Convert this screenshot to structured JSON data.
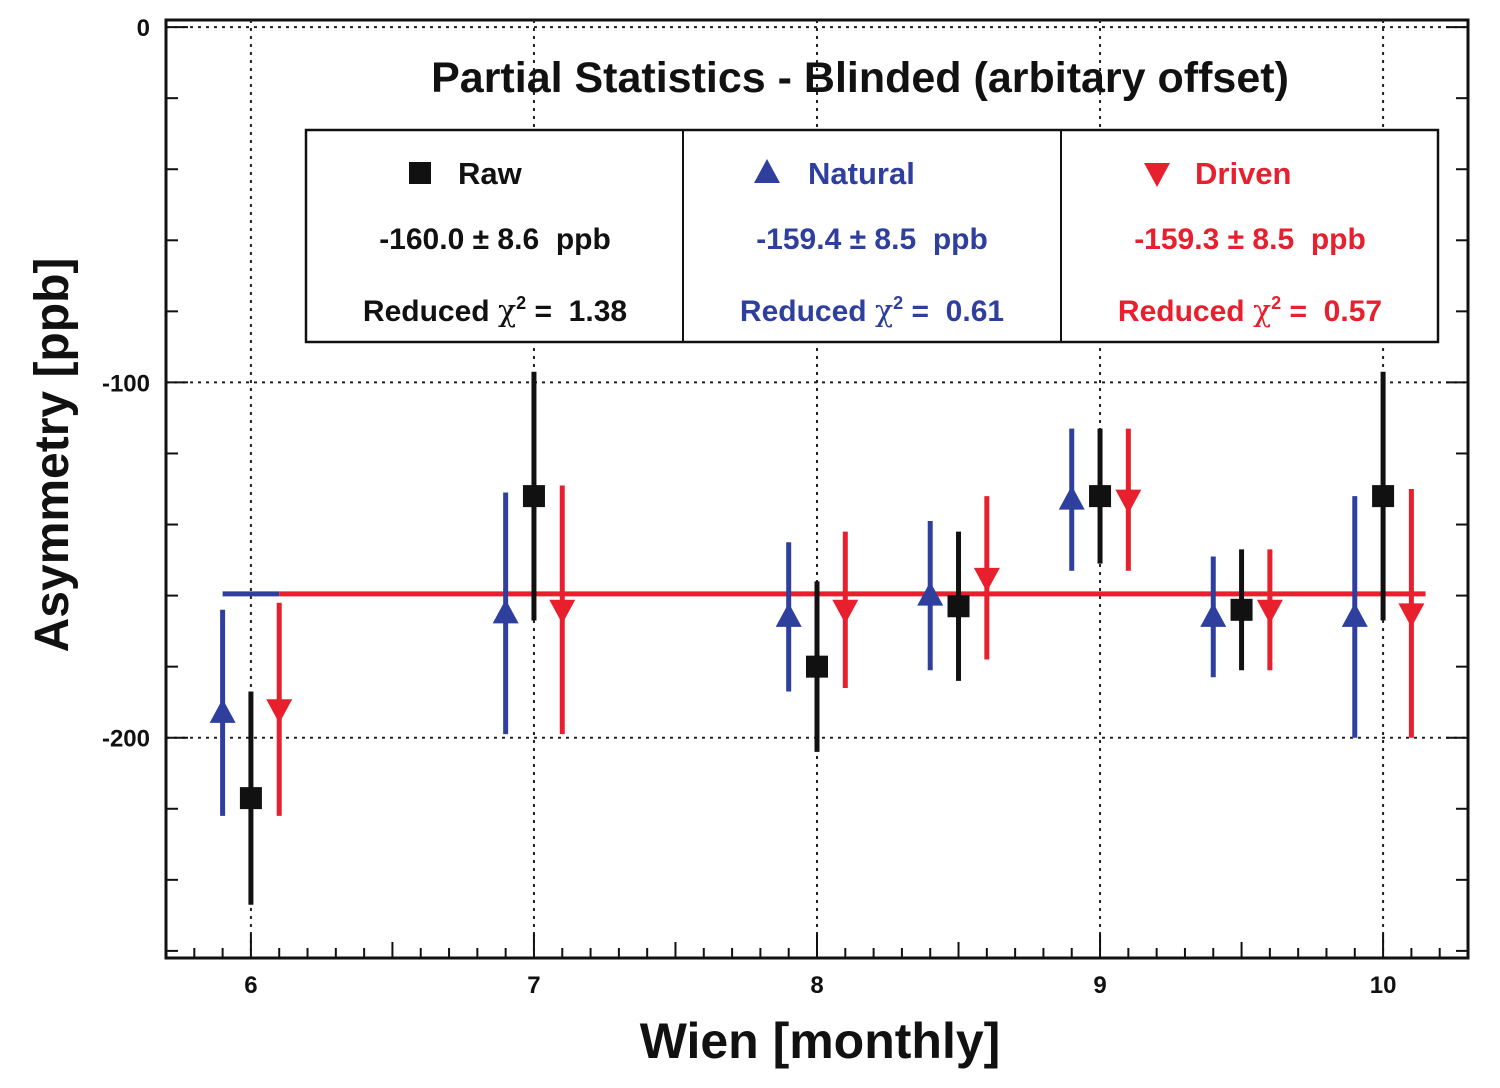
{
  "chart_data": {
    "type": "scatter",
    "title": "Partial Statistics - Blinded (arbitary offset)",
    "xlabel": "Wien  [monthly]",
    "ylabel": "Asymmetry  [ppb]",
    "xlim": [
      5.7,
      10.3
    ],
    "ylim": [
      -262,
      2
    ],
    "x_ticks": [
      "6",
      "7",
      "8",
      "9",
      "10"
    ],
    "y_ticks": [
      "0",
      "-100",
      "-200"
    ],
    "grid": true,
    "legend_position": "top",
    "series": [
      {
        "name": "Raw",
        "color": "#111111",
        "marker": "square",
        "fit": "-160.0",
        "pm": "±",
        "err": "8.6",
        "unit": "ppb",
        "chi_label": "Reduced",
        "chi_value": "1.38",
        "points": [
          {
            "x": 6.0,
            "y": -217,
            "err": 30
          },
          {
            "x": 7.0,
            "y": -132,
            "err": 35
          },
          {
            "x": 8.0,
            "y": -180,
            "err": 24
          },
          {
            "x": 8.5,
            "y": -163,
            "err": 21
          },
          {
            "x": 9.0,
            "y": -132,
            "err": 19
          },
          {
            "x": 9.5,
            "y": -164,
            "err": 17
          },
          {
            "x": 10.0,
            "y": -132,
            "err": 35
          }
        ]
      },
      {
        "name": "Natural",
        "color": "#2f3f9e",
        "marker": "triangle-up",
        "fit": "-159.4",
        "pm": "±",
        "err": "8.5",
        "unit": "ppb",
        "chi_label": "Reduced",
        "chi_value": "0.61",
        "points": [
          {
            "x": 5.9,
            "y": -193,
            "err": 29
          },
          {
            "x": 6.9,
            "y": -165,
            "err": 34
          },
          {
            "x": 7.9,
            "y": -166,
            "err": 21
          },
          {
            "x": 8.4,
            "y": -160,
            "err": 21
          },
          {
            "x": 8.9,
            "y": -133,
            "err": 20
          },
          {
            "x": 9.4,
            "y": -166,
            "err": 17
          },
          {
            "x": 9.9,
            "y": -166,
            "err": 34
          }
        ]
      },
      {
        "name": "Driven",
        "color": "#e8202e",
        "marker": "triangle-down",
        "fit": "-159.3",
        "pm": "±",
        "err": "8.5",
        "unit": "ppb",
        "chi_label": "Reduced",
        "chi_value": "0.57",
        "points": [
          {
            "x": 6.1,
            "y": -192,
            "err": 30
          },
          {
            "x": 7.1,
            "y": -164,
            "err": 35
          },
          {
            "x": 8.1,
            "y": -164,
            "err": 22
          },
          {
            "x": 8.6,
            "y": -155,
            "err": 23
          },
          {
            "x": 9.1,
            "y": -133,
            "err": 20
          },
          {
            "x": 9.6,
            "y": -164,
            "err": 17
          },
          {
            "x": 10.1,
            "y": -165,
            "err": 35
          }
        ]
      }
    ],
    "fit_line": {
      "value": -159.5,
      "x_start": 6.1,
      "x_end": 10.15,
      "natural_x_start": 5.9
    }
  }
}
